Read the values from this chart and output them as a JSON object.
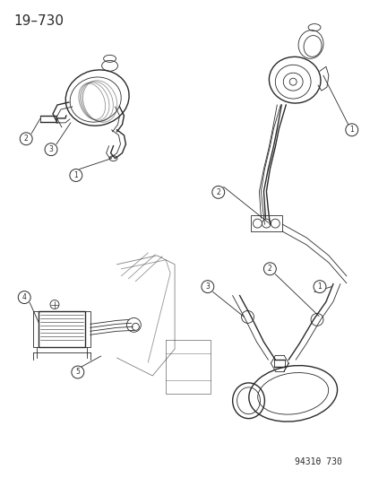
{
  "title": "19–730",
  "footer": "9431θ 730",
  "bg_color": "#ffffff",
  "line_color": "#2a2a2a",
  "title_fontsize": 11,
  "footer_fontsize": 7,
  "fig_width": 4.14,
  "fig_height": 5.33,
  "dpi": 100,
  "gray": "#888888",
  "gray2": "#aaaaaa"
}
